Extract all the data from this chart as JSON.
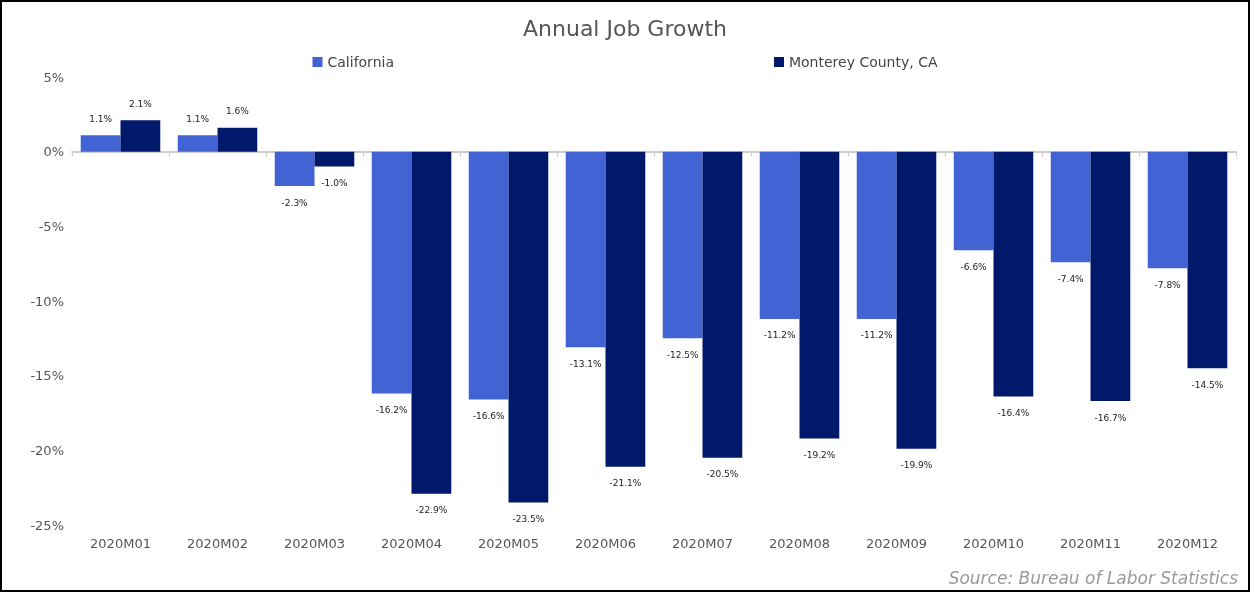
{
  "chart_data": {
    "type": "bar",
    "title": "Annual Job Growth",
    "categories": [
      "2020M01",
      "2020M02",
      "2020M03",
      "2020M04",
      "2020M05",
      "2020M06",
      "2020M07",
      "2020M08",
      "2020M09",
      "2020M10",
      "2020M11",
      "2020M12"
    ],
    "series": [
      {
        "name": "California",
        "color": "#4263d4",
        "values": [
          1.1,
          1.1,
          -2.3,
          -16.2,
          -16.6,
          -13.1,
          -12.5,
          -11.2,
          -11.2,
          -6.6,
          -7.4,
          -7.8
        ],
        "value_labels": [
          "1.1%",
          "1.1%",
          "-2.3%",
          "-16.2%",
          "-16.6%",
          "-13.1%",
          "-12.5%",
          "-11.2%",
          "-11.2%",
          "-6.6%",
          "-7.4%",
          "-7.8%"
        ]
      },
      {
        "name": "Monterey County, CA",
        "color": "#00196b",
        "values": [
          2.1,
          1.6,
          -1.0,
          -22.9,
          -23.5,
          -21.1,
          -20.5,
          -19.2,
          -19.9,
          -16.4,
          -16.7,
          -14.5
        ],
        "value_labels": [
          "2.1%",
          "1.6%",
          "-1.0%",
          "-22.9%",
          "-23.5%",
          "-21.1%",
          "-20.5%",
          "-19.2%",
          "-19.9%",
          "-16.4%",
          "-16.7%",
          "-14.5%"
        ]
      }
    ],
    "ylim": [
      -25,
      5
    ],
    "yticks": [
      {
        "value": 5,
        "label": "5%"
      },
      {
        "value": 0,
        "label": "0%"
      },
      {
        "value": -5,
        "label": "-5%"
      },
      {
        "value": -10,
        "label": "-10%"
      },
      {
        "value": -15,
        "label": "-15%"
      },
      {
        "value": -20,
        "label": "-20%"
      },
      {
        "value": -25,
        "label": "-25%"
      }
    ],
    "legend": "top",
    "annotations": [
      "Source: Bureau of Labor Statistics"
    ]
  }
}
